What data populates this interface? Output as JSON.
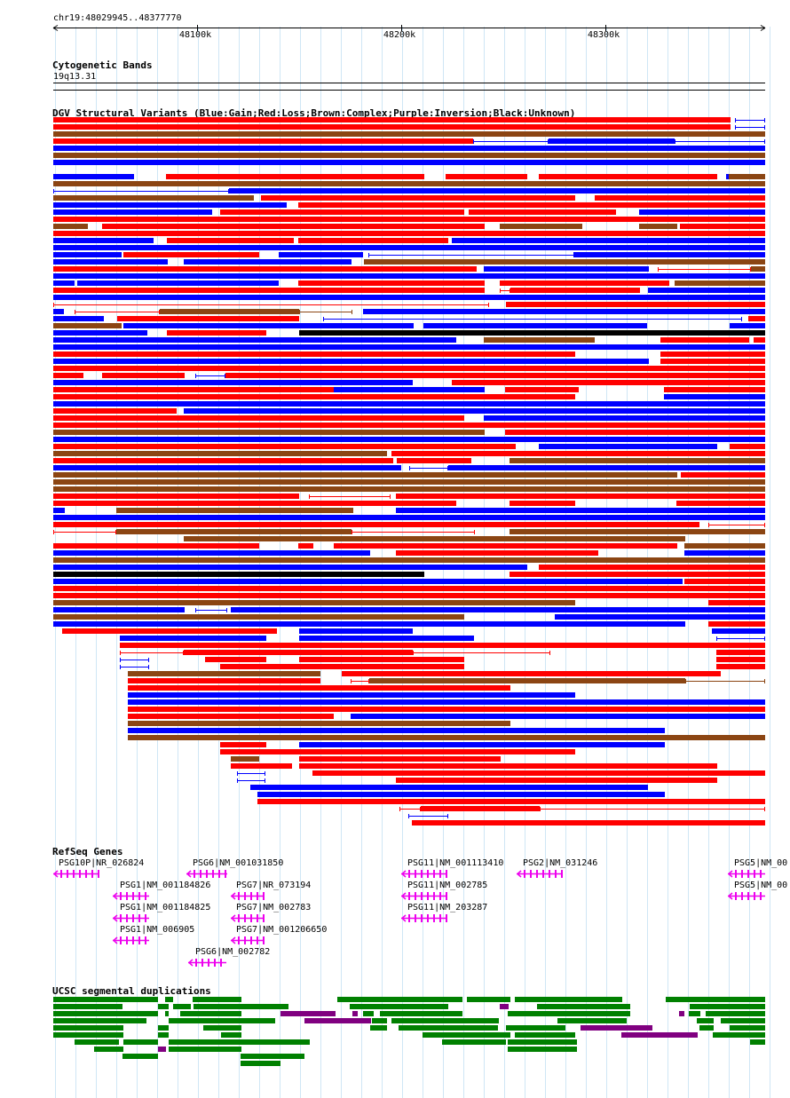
{
  "region": "chr19:48029945..48377770",
  "ruler": {
    "ticks": [
      "48100k",
      "48200k",
      "48300k"
    ]
  },
  "tracks": {
    "cytoband": {
      "title": "Cytogenetic Bands",
      "band": "19q13.31"
    },
    "dgv": {
      "title": "DGV Structural Variants (Blue:Gain;Red:Loss;Brown:Complex;Purple:Inversion;Black:Unknown)",
      "colors": {
        "gain": "#0000ff",
        "loss": "#ff0000",
        "complex": "#8b4513",
        "inversion": "#800080",
        "unknown": "#000000"
      }
    },
    "refseq": {
      "title": "RefSeq Genes",
      "gene_color": "#ee00ee",
      "genes": [
        "PSG10P|NR_026824",
        "PSG6|NM_001031850",
        "PSG1|NM_001184826",
        "PSG7|NR_073194",
        "PSG1|NM_001184825",
        "PSG7|NM_002783",
        "PSG1|NM_006905",
        "PSG7|NM_001206650",
        "PSG6|NM_002782",
        "PSG11|NM_001113410",
        "PSG11|NM_002785",
        "PSG11|NM_203287",
        "PSG2|NM_031246",
        "PSG5|NM_00",
        "PSG5|NM_00"
      ]
    },
    "segdup": {
      "title": "UCSC segmental duplications",
      "colors": {
        "dup": "#008000",
        "inv": "#800080"
      }
    }
  }
}
